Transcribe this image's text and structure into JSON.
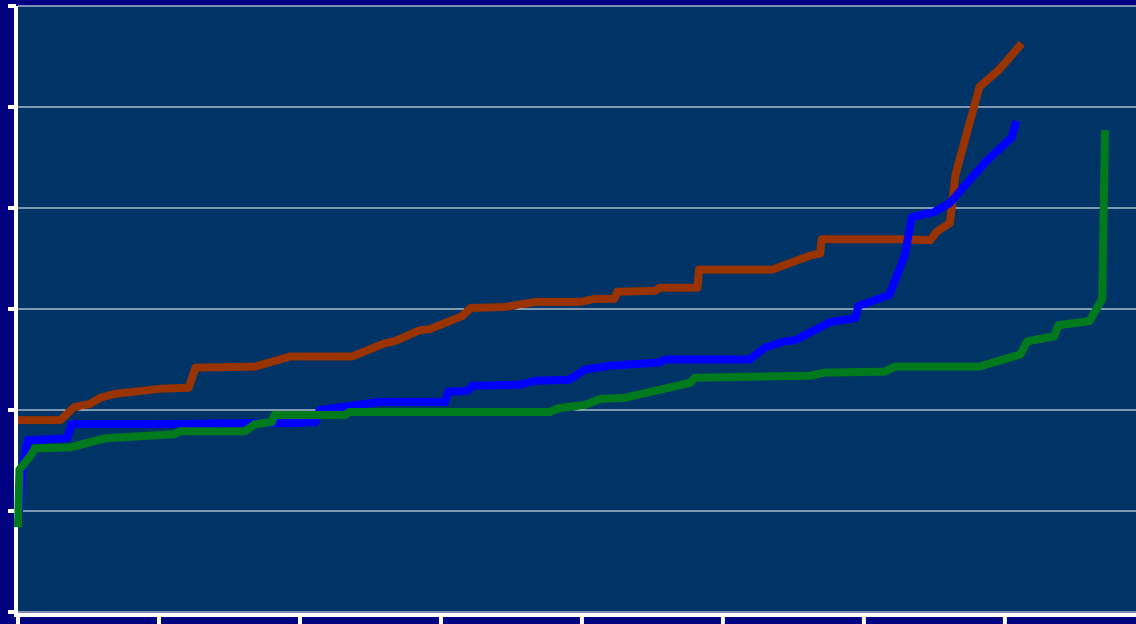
{
  "chart_data": {
    "type": "line",
    "background": "#003366",
    "grid": true,
    "xlim": [
      0,
      7.93
    ],
    "xticks": [
      0,
      1,
      2,
      3,
      4,
      5,
      6,
      7
    ],
    "ylim": [
      0,
      6
    ],
    "yticks": [
      0,
      1,
      2,
      3,
      4,
      5,
      6
    ],
    "series": [
      {
        "color": "#993300",
        "x": [
          0,
          0.3,
          0.4,
          0.51,
          0.58,
          0.69,
          1.01,
          1.21,
          1.26,
          1.68,
          1.93,
          2.37,
          2.6,
          2.67,
          2.85,
          2.92,
          3.15,
          3.21,
          3.45,
          3.67,
          3.99,
          4.09,
          4.23,
          4.25,
          4.52,
          4.55,
          4.82,
          4.83,
          5.35,
          5.62,
          5.69,
          5.7,
          6.29,
          6.47,
          6.52,
          6.61,
          6.65,
          6.82,
          6.96,
          7.12
        ],
        "values": [
          1.9,
          1.9,
          2.03,
          2.06,
          2.12,
          2.16,
          2.21,
          2.22,
          2.42,
          2.43,
          2.53,
          2.53,
          2.66,
          2.68,
          2.79,
          2.8,
          2.93,
          3.01,
          3.02,
          3.07,
          3.07,
          3.1,
          3.1,
          3.17,
          3.18,
          3.21,
          3.21,
          3.39,
          3.39,
          3.53,
          3.55,
          3.69,
          3.69,
          3.68,
          3.77,
          3.85,
          4.33,
          5.2,
          5.37,
          5.63
        ]
      },
      {
        "color": "#0000ff",
        "x": [
          0,
          0.03,
          0.07,
          0.35,
          0.38,
          1.01,
          1.65,
          1.93,
          2.11,
          2.14,
          2.57,
          3.03,
          3.05,
          3.19,
          3.22,
          3.56,
          3.67,
          3.91,
          4.02,
          4.21,
          4.55,
          4.59,
          5.19,
          5.3,
          5.44,
          5.51,
          5.76,
          5.94,
          5.96,
          6.18,
          6.29,
          6.34,
          6.5,
          6.61,
          6.86,
          7.05,
          7.08
        ],
        "values": [
          0.86,
          1.41,
          1.7,
          1.72,
          1.86,
          1.86,
          1.87,
          1.87,
          1.88,
          2.0,
          2.08,
          2.08,
          2.18,
          2.19,
          2.24,
          2.25,
          2.29,
          2.3,
          2.4,
          2.44,
          2.47,
          2.5,
          2.5,
          2.62,
          2.68,
          2.69,
          2.87,
          2.91,
          3.03,
          3.14,
          3.53,
          3.91,
          3.96,
          4.05,
          4.45,
          4.7,
          4.86
        ]
      },
      {
        "color": "#007a1c",
        "x": [
          0,
          0.01,
          0.09,
          0.12,
          0.37,
          0.62,
          1.11,
          1.15,
          1.61,
          1.68,
          1.8,
          1.82,
          2.32,
          2.35,
          3.77,
          3.84,
          4.02,
          4.13,
          4.3,
          4.77,
          4.8,
          5.62,
          5.72,
          6.15,
          6.22,
          6.82,
          7.11,
          7.16,
          7.35,
          7.38,
          7.6,
          7.69,
          7.71
        ],
        "values": [
          0.84,
          1.41,
          1.55,
          1.62,
          1.63,
          1.72,
          1.76,
          1.79,
          1.79,
          1.86,
          1.88,
          1.95,
          1.95,
          1.98,
          1.98,
          2.02,
          2.05,
          2.11,
          2.12,
          2.27,
          2.32,
          2.34,
          2.37,
          2.38,
          2.43,
          2.43,
          2.55,
          2.68,
          2.73,
          2.84,
          2.88,
          3.1,
          4.77
        ]
      }
    ]
  }
}
